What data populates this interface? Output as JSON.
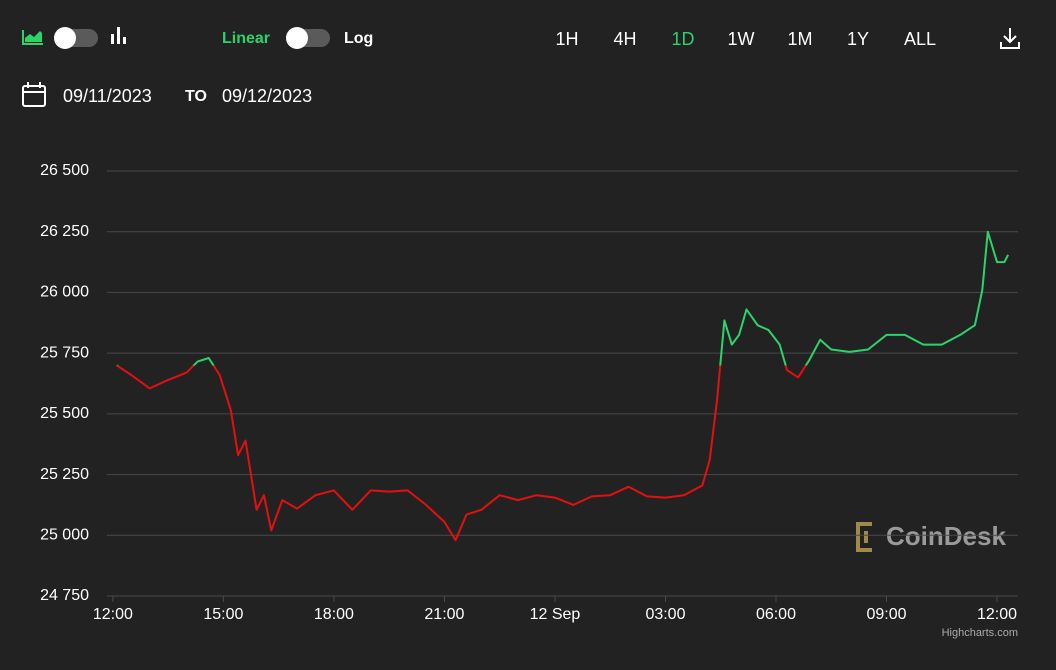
{
  "toolbar": {
    "linear": "Linear",
    "log": "Log",
    "ranges": [
      "1H",
      "4H",
      "1D",
      "1W",
      "1M",
      "1Y",
      "ALL"
    ],
    "active_range": 2,
    "from": "09/11/2023",
    "to_label": "TO",
    "to": "09/12/2023"
  },
  "chart_data": {
    "type": "line",
    "x": [
      0.1,
      0.5,
      1.0,
      1.5,
      2.0,
      2.3,
      2.6,
      2.9,
      3.2,
      3.4,
      3.6,
      3.9,
      4.1,
      4.3,
      4.6,
      5.0,
      5.5,
      6.0,
      6.5,
      7.0,
      7.5,
      8.0,
      8.5,
      9.0,
      9.3,
      9.6,
      10.0,
      10.5,
      11.0,
      11.5,
      12.0,
      12.5,
      13.0,
      13.5,
      14.0,
      14.5,
      15.0,
      15.5,
      16.0,
      16.2,
      16.4,
      16.6,
      16.8,
      17.0,
      17.2,
      17.5,
      17.8,
      18.1,
      18.3,
      18.6,
      18.9,
      19.2,
      19.5,
      20.0,
      20.5,
      21.0,
      21.5,
      22.0,
      22.5,
      23.0,
      23.4,
      23.6,
      23.75,
      24.0,
      24.2,
      24.3
    ],
    "values": [
      25700,
      25660,
      25605,
      25640,
      25670,
      25715,
      25730,
      25660,
      25515,
      25330,
      25390,
      25105,
      25165,
      25020,
      25145,
      25110,
      25165,
      25185,
      25105,
      25185,
      25180,
      25185,
      25125,
      25055,
      24980,
      25085,
      25105,
      25165,
      25145,
      25165,
      25155,
      25125,
      25160,
      25165,
      25200,
      25160,
      25155,
      25165,
      25205,
      25310,
      25555,
      25885,
      25785,
      25825,
      25930,
      25865,
      25845,
      25785,
      25680,
      25650,
      25720,
      25805,
      25765,
      25755,
      25765,
      25825,
      25825,
      25785,
      25785,
      25825,
      25865,
      26010,
      26250,
      26125,
      26125,
      26155
    ],
    "color_above": "#2bd46b",
    "color_below": "#e3100f",
    "xlim": [
      -0.16,
      24.57
    ],
    "ylim": [
      24750,
      26500
    ],
    "xticks": [
      {
        "value": 0,
        "label": "12:00"
      },
      {
        "value": 3,
        "label": "15:00"
      },
      {
        "value": 6,
        "label": "18:00"
      },
      {
        "value": 9,
        "label": "21:00"
      },
      {
        "value": 12,
        "label": "12 Sep"
      },
      {
        "value": 15,
        "label": "03:00"
      },
      {
        "value": 18,
        "label": "06:00"
      },
      {
        "value": 21,
        "label": "09:00"
      },
      {
        "value": 24,
        "label": "12:00"
      }
    ],
    "yticks": [
      {
        "value": 24750,
        "label": "24 750"
      },
      {
        "value": 25000,
        "label": "25 000"
      },
      {
        "value": 25250,
        "label": "25 250"
      },
      {
        "value": 25500,
        "label": "25 500"
      },
      {
        "value": 25750,
        "label": "25 750"
      },
      {
        "value": 26000,
        "label": "26 000"
      },
      {
        "value": 26250,
        "label": "26 250"
      },
      {
        "value": 26500,
        "label": "26 500"
      }
    ],
    "grid": true,
    "watermark": "CoinDesk",
    "credits": "Highcharts.com"
  }
}
